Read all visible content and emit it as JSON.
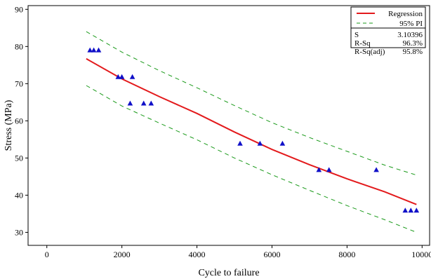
{
  "chart_data": {
    "type": "scatter",
    "xlabel": "Cycle to failure",
    "ylabel": "Stress (MPa)",
    "xlim": [
      -500,
      10200
    ],
    "ylim": [
      26.5,
      91
    ],
    "x_ticks": [
      0,
      2000,
      4000,
      6000,
      8000,
      10000
    ],
    "x_tick_labels": [
      "0",
      "2000",
      "4000",
      "6000",
      "8000",
      "10000"
    ],
    "y_ticks": [
      30,
      40,
      50,
      60,
      70,
      80,
      90
    ],
    "y_tick_labels": [
      "30",
      "40",
      "50",
      "60",
      "70",
      "80",
      "90"
    ],
    "grid": false,
    "legend_position": "top-right",
    "legend": [
      {
        "label": "Regression",
        "style": "solid",
        "color": "#e31a1c"
      },
      {
        "label": "95% PI",
        "style": "dashed",
        "color": "#1a9a1a"
      }
    ],
    "stats": [
      {
        "label": "S",
        "value": "3.10396"
      },
      {
        "label": "R-Sq",
        "value": "96.3%"
      },
      {
        "label": "R-Sq(adj)",
        "value": "95.8%"
      }
    ],
    "marker_color": "#1010c8",
    "points": [
      {
        "x": 1150,
        "y": 79
      },
      {
        "x": 1250,
        "y": 79
      },
      {
        "x": 1380,
        "y": 79
      },
      {
        "x": 1900,
        "y": 71.8
      },
      {
        "x": 2000,
        "y": 71.8
      },
      {
        "x": 2280,
        "y": 71.8
      },
      {
        "x": 2220,
        "y": 64.7
      },
      {
        "x": 2580,
        "y": 64.7
      },
      {
        "x": 2780,
        "y": 64.7
      },
      {
        "x": 5150,
        "y": 53.9
      },
      {
        "x": 5680,
        "y": 53.9
      },
      {
        "x": 6280,
        "y": 53.9
      },
      {
        "x": 7250,
        "y": 46.8
      },
      {
        "x": 7520,
        "y": 46.8
      },
      {
        "x": 8780,
        "y": 46.8
      },
      {
        "x": 9550,
        "y": 35.9
      },
      {
        "x": 9700,
        "y": 35.9
      },
      {
        "x": 9850,
        "y": 35.9
      }
    ],
    "regression": {
      "color": "#e31a1c",
      "x": [
        1050,
        2000,
        3000,
        4000,
        5000,
        6000,
        7000,
        8000,
        9000,
        9850
      ],
      "y": [
        76.7,
        71.3,
        66.5,
        62.0,
        57.0,
        52.3,
        48.2,
        44.4,
        40.9,
        37.5
      ]
    },
    "pi_upper": {
      "color": "#1a9a1a",
      "x": [
        1050,
        2000,
        3000,
        4000,
        5000,
        6000,
        7000,
        8000,
        9000,
        9850
      ],
      "y": [
        84.0,
        78.5,
        73.5,
        68.9,
        64.1,
        59.5,
        55.5,
        51.8,
        48.1,
        45.4
      ]
    },
    "pi_lower": {
      "color": "#1a9a1a",
      "x": [
        1050,
        2000,
        3000,
        4000,
        5000,
        6000,
        7000,
        8000,
        9000,
        9850
      ],
      "y": [
        69.5,
        64.0,
        59.4,
        54.9,
        50.0,
        45.5,
        41.3,
        37.2,
        33.4,
        30.0
      ]
    }
  }
}
